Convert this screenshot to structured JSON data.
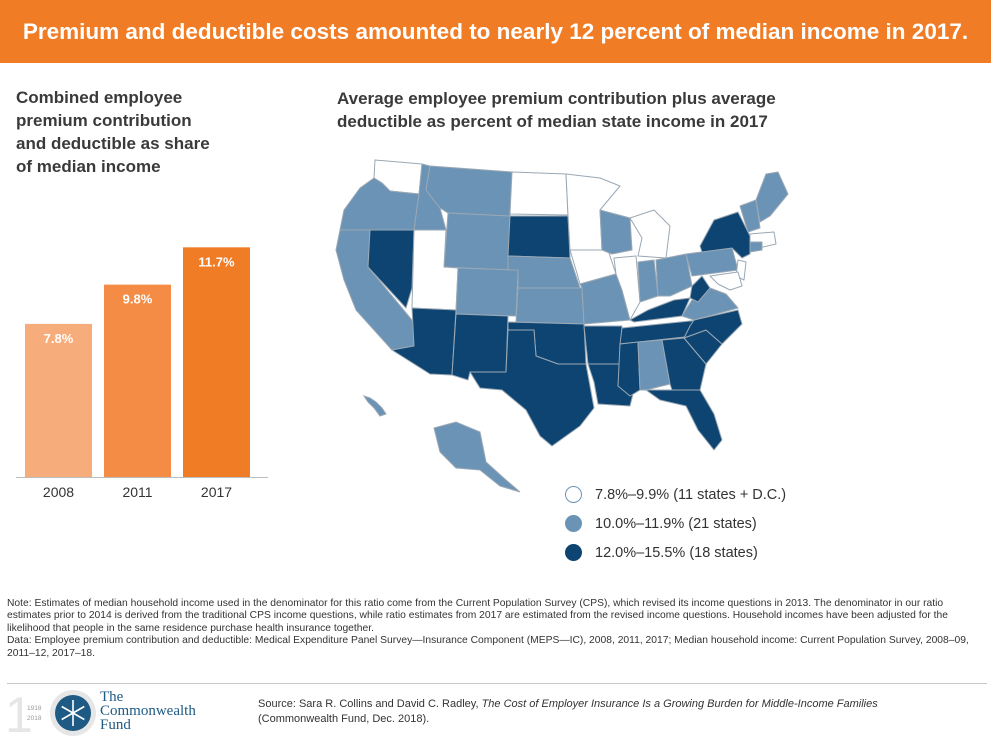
{
  "banner": {
    "title": "Premium and deductible costs amounted to nearly 12 percent of median income in 2017."
  },
  "left_chart": {
    "title_lines": [
      "Combined employee",
      "premium contribution",
      "and deductible as share",
      "of median income"
    ]
  },
  "map": {
    "title_lines": [
      "Average employee premium contribution plus average",
      "deductible as percent of median state income in 2017"
    ]
  },
  "chart_data": [
    {
      "type": "bar",
      "title": "Combined employee premium contribution and deductible as share of median income",
      "categories": [
        "2008",
        "2011",
        "2017"
      ],
      "values": [
        7.8,
        9.8,
        11.7
      ],
      "value_labels": [
        "7.8%",
        "9.8%",
        "11.7%"
      ],
      "unit": "%",
      "ylim": [
        0,
        13.5
      ],
      "colors": [
        "#f7ad7b",
        "#f58c45",
        "#f07c26"
      ],
      "grid": false
    },
    {
      "type": "choropleth",
      "title": "Average employee premium contribution plus average deductible as percent of median state income in 2017",
      "bins": [
        {
          "label": "7.8%–9.9% (11 states + D.C.)",
          "color": "#ffffff"
        },
        {
          "label": "10.0%–11.9% (21 states)",
          "color": "#6b93b6"
        },
        {
          "label": "12.0%–15.5% (18 states)",
          "color": "#0d4471"
        }
      ],
      "legend_position": "bottom-right"
    }
  ],
  "notes": {
    "note": "Note: Estimates of median household income used in the denominator for this ratio come from the Current Population Survey (CPS), which revised its income questions in 2013. The denominator in our ratio estimates prior to 2014 is derived from the traditional CPS income questions, while ratio estimates from 2017 are estimated from the revised income questions. Household incomes have been adjusted for the likelihood that people in the same residence purchase health insurance together.",
    "data": "Data: Employee premium contribution and deductible: Medical Expenditure Panel Survey—Insurance Component (MEPS—IC), 2008, 2011, 2017; Median household income: Current Population Survey, 2008–09, 2011–12, 2017–18."
  },
  "footer": {
    "logo_lines": [
      "The",
      "Commonwealth",
      "Fund"
    ],
    "logo_years": [
      "1918",
      "2018"
    ],
    "logo_icon": "snowflake-seal-icon",
    "source_prefix": "Source: Sara R. Collins and David C. Radley, ",
    "source_title": "The Cost of Employer Insurance Is a Growing Burden for Middle-Income Families",
    "source_suffix": "(Commonwealth Fund, Dec. 2018)."
  }
}
